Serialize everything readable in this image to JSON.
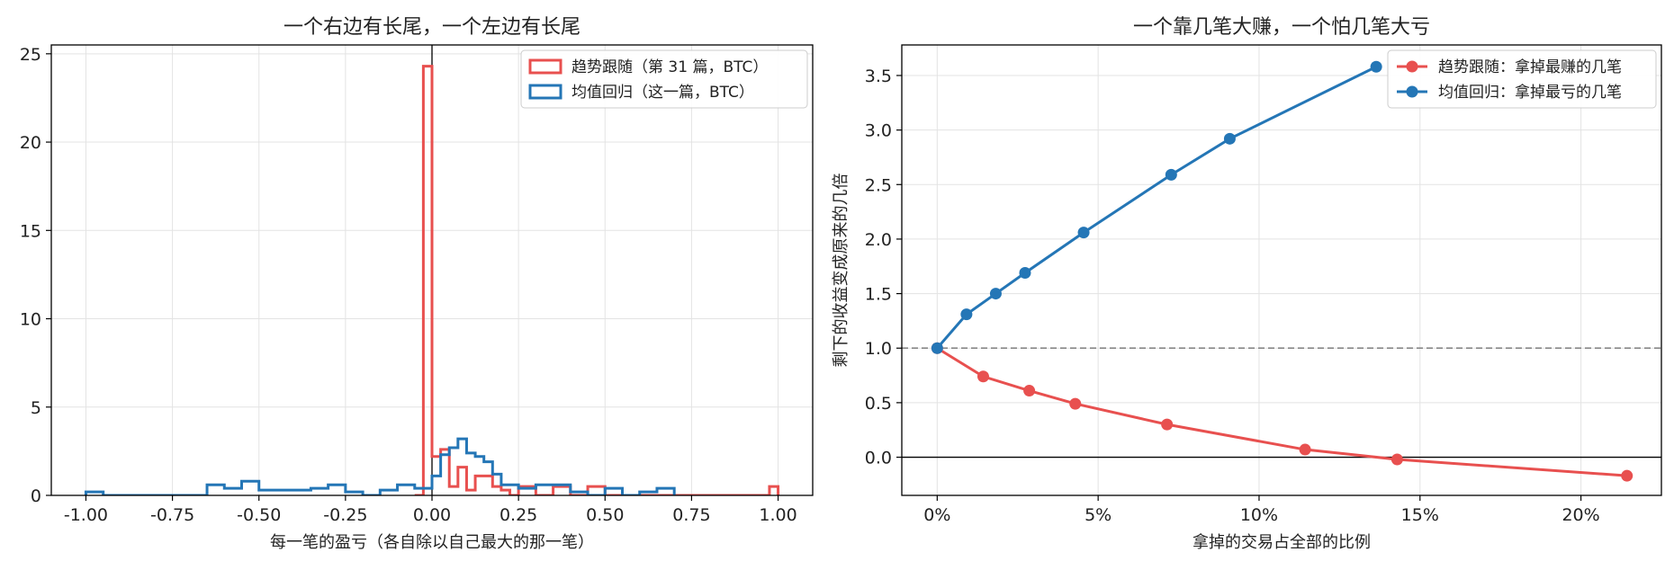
{
  "colors": {
    "trend": "#e8504f",
    "meanrev": "#2476b6",
    "grid": "#e3e3e3"
  },
  "chart_data": [
    {
      "type": "histogram",
      "title": "一个右边有长尾，一个左边有长尾",
      "xlabel": "每一笔的盈亏（各自除以自己最大的那一笔）",
      "ylabel": "",
      "xlim": [
        -1.1,
        1.1
      ],
      "ylim": [
        0,
        25.5
      ],
      "xticks": [
        -1.0,
        -0.75,
        -0.5,
        -0.25,
        0.0,
        0.25,
        0.5,
        0.75,
        1.0
      ],
      "xtick_labels": [
        "-1.00",
        "-0.75",
        "-0.50",
        "-0.25",
        "0.00",
        "0.25",
        "0.50",
        "0.75",
        "1.00"
      ],
      "yticks": [
        0,
        5,
        10,
        15,
        20,
        25
      ],
      "ytick_labels": [
        "0",
        "5",
        "10",
        "15",
        "20",
        "25"
      ],
      "grid": true,
      "legend": "top-right",
      "vline_x": 0,
      "series": [
        {
          "name": "趋势跟随（第 31 篇，BTC）",
          "color": "trend",
          "edges": [
            -0.05,
            -0.025,
            0.0,
            0.025,
            0.05,
            0.075,
            0.1,
            0.125,
            0.15,
            0.175,
            0.2,
            0.225,
            0.25,
            0.3,
            0.35,
            0.4,
            0.45,
            0.5,
            0.55,
            0.6,
            0.65,
            0.7,
            0.75,
            0.8,
            0.85,
            0.9,
            0.95,
            0.975,
            1.0
          ],
          "counts": [
            0,
            24.3,
            2.2,
            2.6,
            0.5,
            1.6,
            0.3,
            1.1,
            1.1,
            0.5,
            0.3,
            0.0,
            0.5,
            0.0,
            0.5,
            0.0,
            0.5,
            0.0,
            0.0,
            0.0,
            0.0,
            0.0,
            0.0,
            0.0,
            0.0,
            0.0,
            0.0,
            0.5
          ]
        },
        {
          "name": "均值回归（这一篇，BTC）",
          "color": "meanrev",
          "edges": [
            -1.0,
            -0.95,
            -0.9,
            -0.85,
            -0.8,
            -0.75,
            -0.7,
            -0.65,
            -0.6,
            -0.55,
            -0.5,
            -0.45,
            -0.4,
            -0.35,
            -0.3,
            -0.25,
            -0.2,
            -0.15,
            -0.1,
            -0.05,
            0.0,
            0.025,
            0.05,
            0.075,
            0.1,
            0.125,
            0.15,
            0.175,
            0.2,
            0.25,
            0.3,
            0.35,
            0.4,
            0.45,
            0.5,
            0.55,
            0.6,
            0.65,
            0.7
          ],
          "counts": [
            0.2,
            0.0,
            0.0,
            0.0,
            0.0,
            0.0,
            0.0,
            0.6,
            0.4,
            0.8,
            0.3,
            0.3,
            0.3,
            0.4,
            0.6,
            0.2,
            0.0,
            0.3,
            0.6,
            0.4,
            1.1,
            2.3,
            2.7,
            3.2,
            2.4,
            2.2,
            1.9,
            1.2,
            0.6,
            0.4,
            0.6,
            0.6,
            0.2,
            0.0,
            0.4,
            0.0,
            0.2,
            0.4
          ]
        }
      ]
    },
    {
      "type": "line",
      "title": "一个靠几笔大赚，一个怕几笔大亏",
      "xlabel": "拿掉的交易占全部的比例",
      "ylabel": "剩下的收益变成原来的几倍",
      "xlim": [
        -0.011,
        0.225
      ],
      "ylim": [
        -0.35,
        3.78
      ],
      "xticks": [
        0,
        0.05,
        0.1,
        0.15,
        0.2
      ],
      "xtick_labels": [
        "0%",
        "5%",
        "10%",
        "15%",
        "20%"
      ],
      "yticks": [
        0.0,
        0.5,
        1.0,
        1.5,
        2.0,
        2.5,
        3.0,
        3.5
      ],
      "ytick_labels": [
        "0.0",
        "0.5",
        "1.0",
        "1.5",
        "2.0",
        "2.5",
        "3.0",
        "3.5"
      ],
      "grid": true,
      "legend": "top-right",
      "hline_dashed": 1.0,
      "hline_solid": 0.0,
      "series": [
        {
          "name": "趋势跟随：拿掉最赚的几笔",
          "color": "trend",
          "x": [
            0,
            0.0143,
            0.0286,
            0.0429,
            0.0714,
            0.1143,
            0.1429,
            0.2143
          ],
          "y": [
            1.0,
            0.74,
            0.61,
            0.49,
            0.3,
            0.07,
            -0.02,
            -0.17
          ]
        },
        {
          "name": "均值回归：拿掉最亏的几笔",
          "color": "meanrev",
          "x": [
            0,
            0.0091,
            0.0182,
            0.0273,
            0.0455,
            0.0727,
            0.0909,
            0.1364
          ],
          "y": [
            1.0,
            1.31,
            1.5,
            1.69,
            2.06,
            2.59,
            2.92,
            3.58
          ]
        }
      ]
    }
  ]
}
